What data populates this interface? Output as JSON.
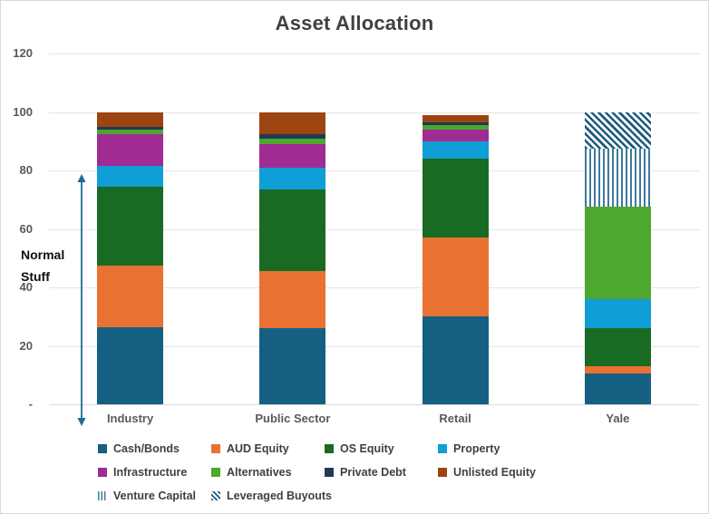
{
  "title": "Asset Allocation",
  "annotation": {
    "line1": "Normal",
    "line2": "Stuff"
  },
  "y_axis": {
    "ticks": [
      "120",
      "100",
      "80",
      "60",
      "40",
      "20",
      "-"
    ]
  },
  "arrow_color": "#1F6A99",
  "chart_data": {
    "type": "bar",
    "stacked": true,
    "title": "Asset Allocation",
    "categories": [
      "Industry",
      "Public Sector",
      "Retail",
      "Yale"
    ],
    "xlabel": "",
    "ylabel": "",
    "ylim": [
      0,
      120
    ],
    "grid": true,
    "legend_position": "bottom",
    "annotation_text": "Normal Stuff (marks range ~0-80 on value axis)",
    "series": [
      {
        "name": "Cash/Bonds",
        "color": "#156082",
        "pattern": "solid",
        "values": [
          26.5,
          26,
          30,
          10.5
        ]
      },
      {
        "name": "AUD Equity",
        "color": "#E97132",
        "pattern": "solid",
        "values": [
          21,
          19.5,
          27,
          2.5
        ]
      },
      {
        "name": "OS Equity",
        "color": "#196B24",
        "pattern": "solid",
        "values": [
          27,
          28,
          27,
          13
        ]
      },
      {
        "name": "Property",
        "color": "#0F9ED5",
        "pattern": "solid",
        "values": [
          7,
          7.5,
          6,
          10
        ]
      },
      {
        "name": "Infrastructure",
        "color": "#A02B93",
        "pattern": "solid",
        "values": [
          11,
          8,
          4,
          0
        ]
      },
      {
        "name": "Alternatives",
        "color": "#4EA72E",
        "pattern": "solid",
        "values": [
          1.5,
          2,
          1.5,
          31.5
        ]
      },
      {
        "name": "Private Debt",
        "color": "#1F3B54",
        "pattern": "solid",
        "values": [
          1,
          1.5,
          1,
          0
        ]
      },
      {
        "name": "Unlisted Equity",
        "color": "#9C4511",
        "pattern": "solid",
        "values": [
          5,
          7.5,
          2.5,
          0
        ]
      },
      {
        "name": "Venture Capital",
        "color": "#3E7A9C",
        "pattern": "vertical",
        "values": [
          0,
          0,
          0,
          20
        ]
      },
      {
        "name": "Leveraged Buyouts",
        "color": "#1B5A7E",
        "pattern": "diagonal",
        "values": [
          0,
          0,
          0,
          12.5
        ]
      }
    ]
  }
}
